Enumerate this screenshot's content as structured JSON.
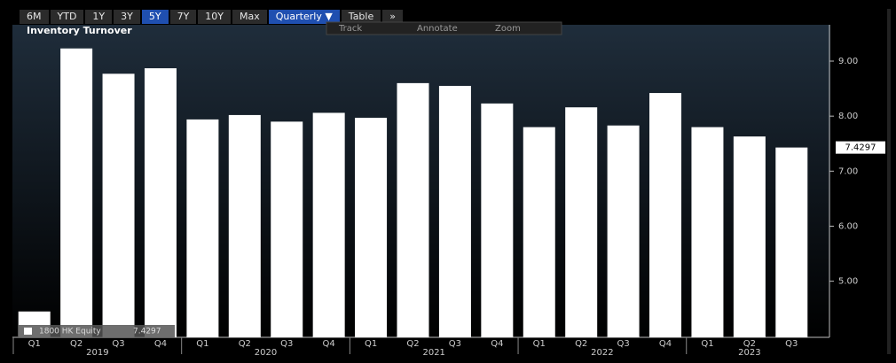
{
  "toolbar": {
    "buttons": [
      "6M",
      "YTD",
      "1Y",
      "3Y",
      "5Y",
      "7Y",
      "10Y",
      "Max",
      "Quarterly ▼",
      "Table",
      "»"
    ]
  },
  "chart_tools": [
    "Track",
    "Annotate",
    "Zoom"
  ],
  "chart_data": {
    "type": "bar",
    "title": "Inventory Turnover",
    "categories": [
      "Q1",
      "Q2",
      "Q3",
      "Q4",
      "Q1",
      "Q2",
      "Q3",
      "Q4",
      "Q1",
      "Q2",
      "Q3",
      "Q4",
      "Q1",
      "Q2",
      "Q3",
      "Q4",
      "Q1",
      "Q2",
      "Q3"
    ],
    "years": [
      "2019",
      "2020",
      "2021",
      "2022",
      "2023"
    ],
    "series": [
      {
        "name": "1800 HK Equity",
        "color": "#ffffff",
        "values": [
          4.45,
          9.23,
          8.77,
          8.87,
          7.94,
          8.02,
          7.9,
          8.06,
          7.97,
          8.6,
          8.55,
          8.23,
          7.8,
          8.16,
          7.83,
          8.42,
          7.8,
          7.63,
          7.4297
        ]
      }
    ],
    "ylim": [
      3.98,
      9.66
    ],
    "yticks": [
      {
        "value": 5,
        "label": "5.00"
      },
      {
        "value": 6,
        "label": "6.00"
      },
      {
        "value": 7,
        "label": "7.00"
      },
      {
        "value": 8,
        "label": "8.00"
      },
      {
        "value": 9,
        "label": "9.00"
      }
    ],
    "grid": false
  }
}
